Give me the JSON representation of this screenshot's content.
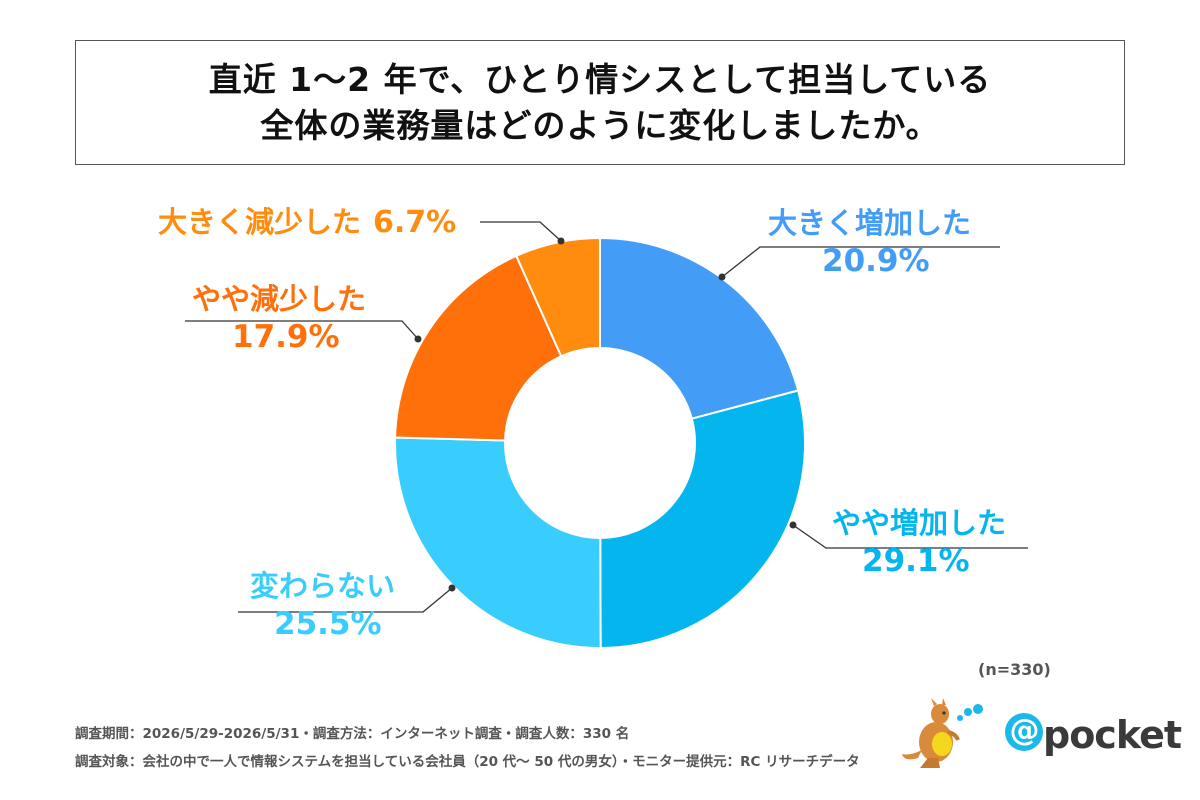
{
  "title": {
    "line1": "直近 1～2 年で、ひとり情シスとして担当している",
    "line2": "全体の業務量はどのように変化しましたか。"
  },
  "chart_data": {
    "type": "pie",
    "donut": true,
    "title": "直近 1～2 年で、ひとり情シスとして担当している全体の業務量はどのように変化しましたか。",
    "categories": [
      "大きく増加した",
      "やや増加した",
      "変わらない",
      "やや減少した",
      "大きく減少した"
    ],
    "values": [
      20.9,
      29.1,
      25.5,
      17.9,
      6.7
    ],
    "unit": "%",
    "colors": [
      "#439DF7",
      "#05B5EE",
      "#38CDFD",
      "#FF6F0A",
      "#FF8C0F"
    ],
    "start": "12 o'clock",
    "direction": "clockwise",
    "legend": "none"
  },
  "sample_note": "(n=330)",
  "footnotes": {
    "period": "調査期間：2026/5/29-2026/5/31・調査方法：インターネット調査・調査人数：330 名",
    "target": "調査対象：会社の中で一人で情報システムを担当している会社員（20 代～ 50 代の男女）・モニター提供元：RC リサーチデータ"
  },
  "brand": {
    "logo_text": "@pocket",
    "mascot": "kangaroo-icon"
  }
}
